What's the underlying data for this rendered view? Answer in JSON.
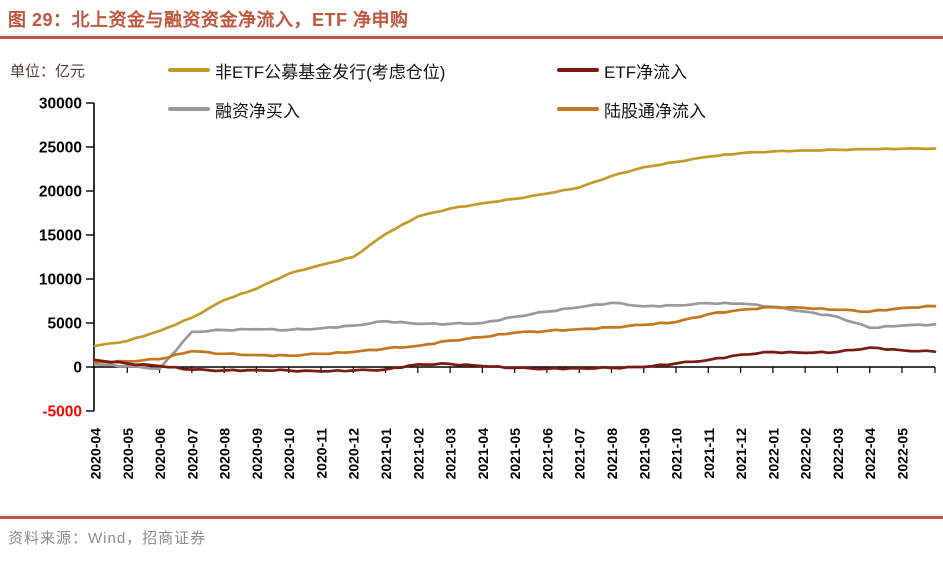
{
  "header": {
    "title": "图 29：北上资金与融资资金净流入，ETF 净申购"
  },
  "chart": {
    "unit_label": "单位：亿元"
  },
  "footer": {
    "source": "资料来源：Wind，招商证券"
  },
  "colors": {
    "title": "#BE5640",
    "accent_rule": "#BE5640",
    "axis": "#000000",
    "negative_tick": "#FF0000",
    "axis_label": "#000000",
    "legend_text": "#141414",
    "unit_text": "#4E4334",
    "source_text": "#8C8C8C"
  },
  "chart_data": {
    "type": "line",
    "title": "北上资金与融资资金净流入，ETF 净申购",
    "xlabel": "",
    "ylabel": "亿元",
    "ylim": [
      -5000,
      30000
    ],
    "ytick_step": 5000,
    "grid": false,
    "legend_position": "top",
    "categories": [
      "2020-04",
      "2020-05",
      "2020-06",
      "2020-07",
      "2020-08",
      "2020-09",
      "2020-10",
      "2020-11",
      "2020-12",
      "2021-01",
      "2021-02",
      "2021-03",
      "2021-04",
      "2021-05",
      "2021-06",
      "2021-07",
      "2021-08",
      "2021-09",
      "2021-10",
      "2021-11",
      "2021-12",
      "2022-01",
      "2022-02",
      "2022-03",
      "2022-04",
      "2022-05"
    ],
    "series": [
      {
        "key": "non_etf_fund_issuance",
        "name": "非ETF公募基金发行(考虑仓位)",
        "color": "#C49A2B",
        "values": [
          2400,
          2950,
          4100,
          5600,
          7600,
          8900,
          10600,
          11600,
          12500,
          15100,
          17100,
          18000,
          18600,
          19100,
          19700,
          20400,
          21700,
          22700,
          23300,
          23900,
          24300,
          24500,
          24600,
          24680,
          24750,
          24800
        ]
      },
      {
        "key": "etf_net_inflow",
        "name": "ETF净流入",
        "color": "#7A1A12",
        "values": [
          800,
          400,
          100,
          -300,
          -400,
          -350,
          -400,
          -500,
          -400,
          -300,
          300,
          350,
          100,
          -100,
          -200,
          -150,
          -100,
          0,
          400,
          800,
          1400,
          1700,
          1600,
          1700,
          2200,
          1900
        ]
      },
      {
        "key": "margin_net_buy",
        "name": "融资净买入",
        "color": "#9A9A9A",
        "values": [
          300,
          100,
          -200,
          4000,
          4200,
          4300,
          4200,
          4400,
          4700,
          5200,
          4900,
          4900,
          5000,
          5700,
          6300,
          6800,
          7300,
          6900,
          7000,
          7250,
          7200,
          6850,
          6300,
          5700,
          4450,
          4700
        ]
      },
      {
        "key": "northbound_net_inflow",
        "name": "陆股通净流入",
        "color": "#C3771E",
        "values": [
          550,
          650,
          900,
          1800,
          1500,
          1350,
          1300,
          1500,
          1700,
          2100,
          2400,
          3000,
          3400,
          3900,
          4100,
          4300,
          4500,
          4800,
          5100,
          6000,
          6500,
          6800,
          6700,
          6500,
          6300,
          6700
        ]
      }
    ]
  }
}
